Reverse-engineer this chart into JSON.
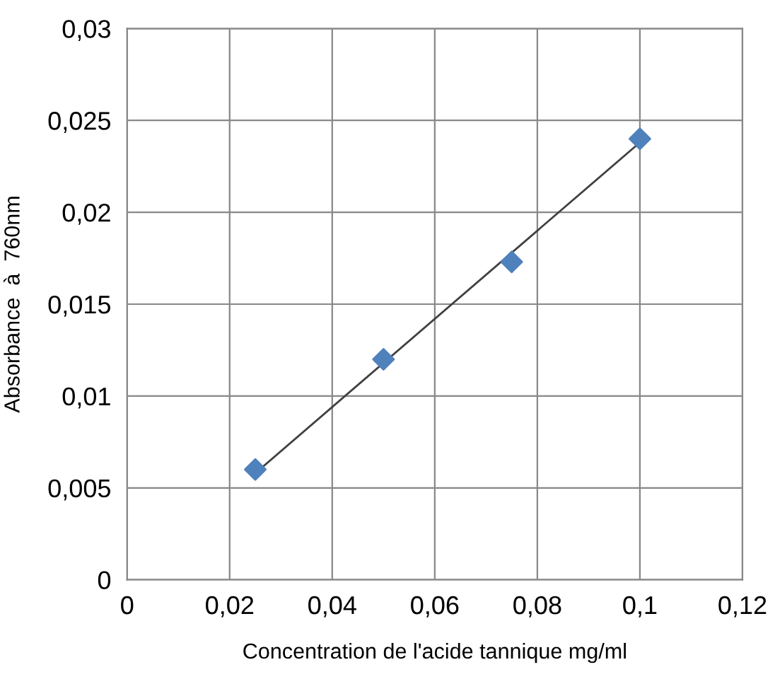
{
  "chart_data": {
    "type": "scatter",
    "xlabel": "Concentration de l'acide tannique mg/ml",
    "ylabel": "Absorbance  à  760nm",
    "series": [
      {
        "color": "#4f81bd",
        "marker": "diamond",
        "x": [
          0.025,
          0.05,
          0.075,
          0.1
        ],
        "values": [
          0.006,
          0.012,
          0.0173,
          0.024
        ]
      },
      {
        "type": "line",
        "color": "#404040",
        "marker": "none",
        "line_style": "solid",
        "x": [
          0.025,
          0.1
        ],
        "values": [
          0.0058,
          0.0238
        ]
      }
    ],
    "xlim": [
      0,
      0.12
    ],
    "ylim": [
      0,
      0.03
    ],
    "xticks": [
      0,
      {
        "value": 0.02,
        "label": "0,02"
      },
      {
        "value": 0.04,
        "label": "0,04"
      },
      {
        "value": 0.06,
        "label": "0,06"
      },
      {
        "value": 0.08,
        "label": "0,08"
      },
      {
        "value": 0.1,
        "label": "0,1"
      },
      {
        "value": 0.12,
        "label": "0,12"
      }
    ],
    "yticks": [
      0,
      {
        "value": 0.005,
        "label": "0,005"
      },
      {
        "value": 0.01,
        "label": "0,01"
      },
      {
        "value": 0.015,
        "label": "0,015"
      },
      {
        "value": 0.02,
        "label": "0,02"
      },
      {
        "value": 0.025,
        "label": "0,025"
      },
      {
        "value": 0.03,
        "label": "0,03"
      }
    ],
    "grid": true,
    "legend": false
  }
}
